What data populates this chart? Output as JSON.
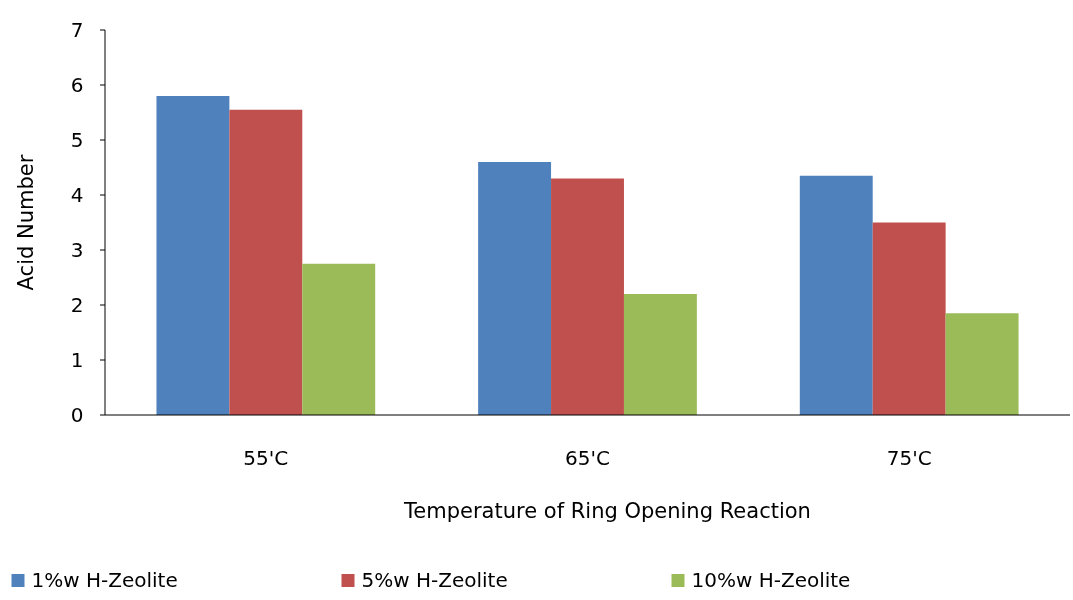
{
  "chart_data": {
    "type": "bar",
    "xlabel": "Temperature of Ring Opening Reaction",
    "ylabel": "Acid Number",
    "categories": [
      "55'C",
      "65'C",
      "75'C"
    ],
    "series": [
      {
        "name": "1%w H-Zeolite",
        "color": "#4f81bd",
        "values": [
          5.8,
          4.6,
          4.35
        ]
      },
      {
        "name": "5%w H-Zeolite",
        "color": "#c0504d",
        "values": [
          5.55,
          4.3,
          3.5
        ]
      },
      {
        "name": "10%w H-Zeolite",
        "color": "#9bbb59",
        "values": [
          2.75,
          2.2,
          1.85
        ]
      }
    ],
    "ylim": [
      0,
      7
    ],
    "yticks": [
      0,
      1,
      2,
      3,
      4,
      5,
      6,
      7
    ],
    "grid": false,
    "legend": "bottom"
  }
}
